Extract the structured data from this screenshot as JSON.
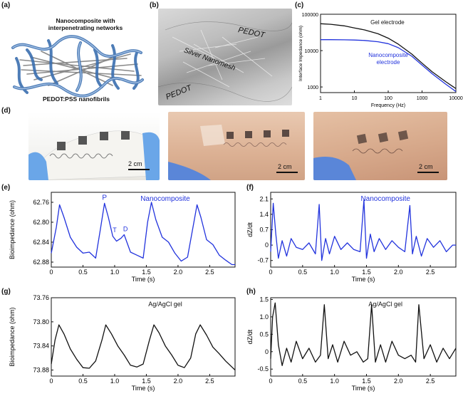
{
  "panel_labels": {
    "a": "(a)",
    "b": "(b)",
    "c": "(c)",
    "d": "(d)",
    "e": "(e)",
    "f": "(f)",
    "g": "(g)",
    "h": "(h)"
  },
  "panel_a": {
    "title": "Nanocomposite with interpenetrating networks",
    "caption": "PEDOT:PSS nanofibrils",
    "colors": {
      "network": "#3b6fb0",
      "core": "#8a8a8a"
    }
  },
  "panel_b": {
    "labels": [
      "PEDOT",
      "Silver Nanomesh",
      "PEDOT"
    ]
  },
  "panel_d": {
    "scalebars": [
      "2 cm",
      "2 cm",
      "2 cm"
    ]
  },
  "chart_data": [
    {
      "id": "c",
      "type": "line",
      "xlabel": "Frequency (Hz)",
      "ylabel": "Interface Impedance (ohm)",
      "xscale": "log",
      "yscale": "log",
      "xlim": [
        1,
        10000
      ],
      "ylim": [
        700,
        100000
      ],
      "xticks": [
        "1",
        "10",
        "100",
        "1000",
        "10000"
      ],
      "yticks": [
        "1000",
        "10000",
        "100000"
      ],
      "series": [
        {
          "name": "Gel electrode",
          "color": "#111111",
          "x": [
            1,
            2,
            5,
            10,
            20,
            50,
            100,
            200,
            500,
            1000,
            2000,
            5000,
            10000
          ],
          "y": [
            55000,
            53000,
            48000,
            42000,
            37000,
            29000,
            22000,
            15000,
            8000,
            4500,
            2600,
            1400,
            900
          ]
        },
        {
          "name": "Nanocomposite electrode",
          "color": "#2233dd",
          "x": [
            1,
            2,
            5,
            10,
            20,
            50,
            100,
            200,
            500,
            1000,
            2000,
            5000,
            10000
          ],
          "y": [
            20000,
            20000,
            19800,
            19500,
            19000,
            17500,
            15500,
            12000,
            7000,
            4000,
            2300,
            1200,
            750
          ]
        }
      ],
      "series_labels": [
        "Gel electrode",
        "Nanocomposite electrode"
      ]
    },
    {
      "id": "e",
      "type": "line",
      "title": "Nanocomposite",
      "xlabel": "Time (s)",
      "ylabel": "Bioimpedance (ohm)",
      "xlim": [
        0,
        2.9
      ],
      "ylim": [
        62.74,
        62.89
      ],
      "y_inverted": true,
      "xticks": [
        "0",
        "0.5",
        "1.0",
        "1.5",
        "2.0",
        "2.5"
      ],
      "yticks": [
        "62.76",
        "62.80",
        "62.84",
        "62.88"
      ],
      "annotations": [
        "P",
        "T",
        "D"
      ],
      "series": [
        {
          "color": "#2233dd",
          "x": [
            0,
            0.08,
            0.13,
            0.2,
            0.3,
            0.4,
            0.5,
            0.6,
            0.7,
            0.78,
            0.84,
            0.9,
            0.97,
            1.03,
            1.1,
            1.15,
            1.25,
            1.35,
            1.45,
            1.52,
            1.58,
            1.65,
            1.75,
            1.85,
            1.95,
            2.05,
            2.15,
            2.25,
            2.3,
            2.36,
            2.45,
            2.55,
            2.65,
            2.75,
            2.85,
            2.9
          ],
          "y": [
            62.862,
            62.81,
            62.765,
            62.79,
            62.83,
            62.85,
            62.862,
            62.86,
            62.872,
            62.81,
            62.762,
            62.79,
            62.828,
            62.838,
            62.832,
            62.825,
            62.86,
            62.866,
            62.872,
            62.8,
            62.76,
            62.795,
            62.83,
            62.84,
            62.862,
            62.878,
            62.87,
            62.8,
            62.765,
            62.79,
            62.835,
            62.845,
            62.866,
            62.876,
            62.885,
            62.885
          ]
        }
      ]
    },
    {
      "id": "f",
      "type": "line",
      "title": "Nanocomposite",
      "xlabel": "Time (s)",
      "ylabel": "dZ/dt",
      "xlim": [
        0,
        2.9
      ],
      "ylim": [
        -1.0,
        2.4
      ],
      "xticks": [
        "0",
        "0.5",
        "1.0",
        "1.5",
        "2.0",
        "2.5"
      ],
      "yticks": [
        "2.1",
        "1.4",
        "0.7",
        "0",
        "-0.7"
      ],
      "series": [
        {
          "color": "#2233dd",
          "x": [
            0,
            0.04,
            0.08,
            0.12,
            0.18,
            0.25,
            0.32,
            0.4,
            0.5,
            0.6,
            0.7,
            0.76,
            0.8,
            0.86,
            0.92,
            1.0,
            1.1,
            1.2,
            1.3,
            1.4,
            1.46,
            1.5,
            1.56,
            1.62,
            1.7,
            1.8,
            1.9,
            2.0,
            2.1,
            2.18,
            2.22,
            2.28,
            2.36,
            2.45,
            2.55,
            2.65,
            2.75,
            2.85,
            2.9
          ],
          "y": [
            -0.3,
            1.9,
            0.5,
            -0.6,
            0.2,
            -0.5,
            0.3,
            -0.1,
            -0.2,
            0.1,
            -0.4,
            1.85,
            -0.7,
            0.3,
            -0.4,
            0.4,
            -0.2,
            0.1,
            -0.2,
            -0.3,
            2.05,
            -0.6,
            0.5,
            -0.3,
            0.3,
            -0.2,
            0.2,
            -0.1,
            -0.3,
            1.8,
            -0.4,
            0.4,
            -0.5,
            0.3,
            -0.1,
            0.2,
            -0.3,
            0.0,
            0.0
          ]
        }
      ]
    },
    {
      "id": "g",
      "type": "line",
      "title": "Ag/AgCl gel",
      "xlabel": "Time (s)",
      "ylabel": "Bioimpedance (ohm)",
      "xlim": [
        0,
        2.9
      ],
      "ylim": [
        73.76,
        73.89
      ],
      "y_inverted": true,
      "xticks": [
        "0",
        "0.5",
        "1.0",
        "1.5",
        "2.0",
        "2.5"
      ],
      "yticks": [
        "73.76",
        "73.80",
        "73.84",
        "73.88"
      ],
      "series": [
        {
          "color": "#111111",
          "x": [
            0,
            0.06,
            0.12,
            0.2,
            0.3,
            0.4,
            0.5,
            0.6,
            0.7,
            0.8,
            0.86,
            0.95,
            1.05,
            1.15,
            1.25,
            1.35,
            1.45,
            1.55,
            1.62,
            1.7,
            1.8,
            1.9,
            2.0,
            2.1,
            2.2,
            2.28,
            2.35,
            2.45,
            2.55,
            2.65,
            2.75,
            2.85,
            2.9
          ],
          "y": [
            73.87,
            73.83,
            73.805,
            73.82,
            73.845,
            73.862,
            73.876,
            73.877,
            73.865,
            73.83,
            73.805,
            73.82,
            73.84,
            73.855,
            73.872,
            73.875,
            73.87,
            73.83,
            73.805,
            73.818,
            73.84,
            73.855,
            73.872,
            73.876,
            73.86,
            73.82,
            73.805,
            73.822,
            73.842,
            73.853,
            73.865,
            73.875,
            73.88
          ]
        }
      ]
    },
    {
      "id": "h",
      "type": "line",
      "title": "Ag/AgCl gel",
      "xlabel": "Time (s)",
      "ylabel": "dZ/dt",
      "xlim": [
        0,
        2.9
      ],
      "ylim": [
        -0.7,
        1.55
      ],
      "xticks": [
        "0",
        "0.5",
        "1.0",
        "1.5",
        "2.0",
        "2.5"
      ],
      "yticks": [
        "1.5",
        "1.0",
        "0.5",
        "0",
        "-0.5"
      ],
      "series": [
        {
          "color": "#111111",
          "x": [
            0,
            0.03,
            0.07,
            0.12,
            0.18,
            0.25,
            0.32,
            0.4,
            0.5,
            0.6,
            0.7,
            0.78,
            0.84,
            0.9,
            0.97,
            1.05,
            1.15,
            1.25,
            1.35,
            1.45,
            1.52,
            1.58,
            1.64,
            1.72,
            1.8,
            1.9,
            2.0,
            2.1,
            2.2,
            2.27,
            2.32,
            2.4,
            2.5,
            2.6,
            2.7,
            2.8,
            2.9
          ],
          "y": [
            -0.2,
            1.0,
            1.4,
            0.2,
            -0.4,
            0.1,
            -0.3,
            0.3,
            -0.2,
            0.1,
            -0.3,
            -0.1,
            1.35,
            -0.2,
            0.2,
            -0.3,
            0.3,
            -0.1,
            0.0,
            -0.3,
            -0.2,
            1.35,
            -0.3,
            0.2,
            -0.3,
            0.3,
            -0.1,
            -0.2,
            -0.1,
            -0.3,
            1.35,
            -0.2,
            0.2,
            -0.3,
            0.1,
            -0.2,
            0.1
          ]
        }
      ]
    }
  ]
}
